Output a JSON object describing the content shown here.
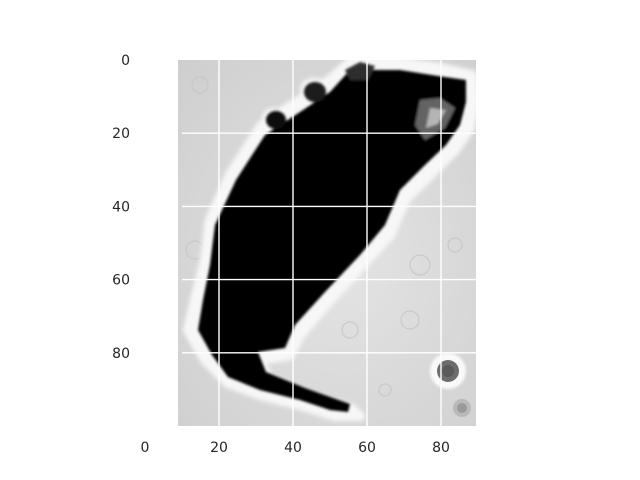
{
  "chart_data": {
    "type": "heatmap",
    "subtype": "grayscale image display (imshow)",
    "title": "",
    "xlabel": "",
    "ylabel": "",
    "xlim": [
      0,
      90
    ],
    "ylim": [
      100,
      0
    ],
    "image_extent_x": [
      10,
      90
    ],
    "image_extent_y": [
      0,
      100
    ],
    "y_axis_inverted": true,
    "grid": true,
    "x_ticks": [
      0,
      20,
      40,
      60,
      80
    ],
    "y_ticks": [
      0,
      20,
      40,
      60,
      80
    ],
    "colormap": "gray",
    "colors": {
      "background": "#ffffff",
      "grid": "#ffffff",
      "tick_text": "#262626",
      "image_background": "#dcdcdc",
      "subject": "#050505",
      "halo": "#f8f8f8"
    },
    "subject_description": "dark silhouette of a mouse (top-down view) on a light gray background"
  }
}
